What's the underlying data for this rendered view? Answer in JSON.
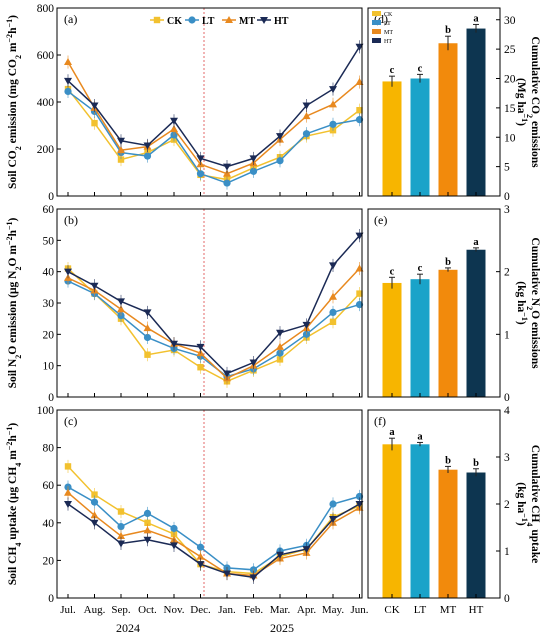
{
  "colors": {
    "CK": "#f2c12e",
    "LT": "#3a8fc6",
    "MT": "#e8891f",
    "HT": "#1b2a55"
  },
  "bar_colors": {
    "CK": "#f7b500",
    "LT": "#1aa3c9",
    "MT": "#f28a0c",
    "HT": "#0d3550"
  },
  "legend": [
    "CK",
    "LT",
    "MT",
    "HT"
  ],
  "months": [
    "Jul.",
    "Aug.",
    "Sep.",
    "Oct.",
    "Nov.",
    "Dec.",
    "Jan.",
    "Feb.",
    "Mar.",
    "Apr.",
    "May.",
    "Jun."
  ],
  "years": [
    "2024",
    "2025"
  ],
  "chart_data": [
    {
      "type": "line",
      "panel": "(a)",
      "ylabel": "Soil CO2 emission (mg CO2 m−2h−1)",
      "ylim": [
        0,
        800
      ],
      "yticks": [
        0,
        200,
        400,
        600,
        800
      ],
      "series": [
        {
          "name": "CK",
          "x": [
            0,
            1,
            2,
            3,
            4,
            5,
            6,
            7,
            8,
            9,
            10,
            11
          ],
          "values": [
            455,
            310,
            155,
            185,
            240,
            90,
            70,
            120,
            165,
            255,
            280,
            365
          ]
        },
        {
          "name": "LT",
          "x": [
            0,
            1,
            2,
            3,
            4,
            5,
            6,
            7,
            8,
            9,
            10,
            11
          ],
          "values": [
            445,
            360,
            185,
            170,
            260,
            95,
            55,
            105,
            150,
            265,
            305,
            325
          ]
        },
        {
          "name": "MT",
          "x": [
            0,
            1,
            2,
            3,
            4,
            5,
            6,
            7,
            8,
            9,
            10,
            11
          ],
          "values": [
            570,
            375,
            195,
            210,
            285,
            135,
            95,
            140,
            240,
            340,
            390,
            485
          ]
        },
        {
          "name": "HT",
          "x": [
            0,
            1,
            2,
            3,
            4,
            5,
            6,
            7,
            8,
            9,
            10,
            11
          ],
          "values": [
            490,
            385,
            235,
            215,
            320,
            160,
            125,
            160,
            255,
            385,
            455,
            635
          ]
        }
      ]
    },
    {
      "type": "line",
      "panel": "(b)",
      "ylabel": "Soil N2O emission (μg N2O m−2h−1)",
      "ylim": [
        0,
        60
      ],
      "yticks": [
        0,
        10,
        20,
        30,
        40,
        50,
        60
      ],
      "series": [
        {
          "name": "CK",
          "x": [
            0,
            1,
            2,
            3,
            4,
            5,
            6,
            7,
            8,
            9,
            10,
            11
          ],
          "values": [
            41,
            33,
            25,
            13.5,
            15,
            9.5,
            5,
            8.5,
            12,
            19,
            24,
            33
          ]
        },
        {
          "name": "LT",
          "x": [
            0,
            1,
            2,
            3,
            4,
            5,
            6,
            7,
            8,
            9,
            10,
            11
          ],
          "values": [
            37,
            33,
            26,
            19,
            15.5,
            13,
            6.5,
            9,
            14,
            20,
            27,
            29.5
          ]
        },
        {
          "name": "MT",
          "x": [
            0,
            1,
            2,
            3,
            4,
            5,
            6,
            7,
            8,
            9,
            10,
            11
          ],
          "values": [
            38,
            34,
            28,
            22,
            17,
            14,
            6,
            10,
            16,
            22,
            32,
            41
          ]
        },
        {
          "name": "HT",
          "x": [
            0,
            1,
            2,
            3,
            4,
            5,
            6,
            7,
            8,
            9,
            10,
            11
          ],
          "values": [
            40,
            35.5,
            30.5,
            27,
            17,
            16,
            7.5,
            11,
            20.5,
            23,
            42,
            51.5
          ]
        }
      ]
    },
    {
      "type": "line",
      "panel": "(c)",
      "ylabel": "Soil CH4 uptake (μg CH4 m−2h−1)",
      "ylim": [
        0,
        100
      ],
      "yticks": [
        0,
        20,
        40,
        60,
        80,
        100
      ],
      "series": [
        {
          "name": "CK",
          "x": [
            0,
            1,
            2,
            3,
            4,
            5,
            6,
            7,
            8,
            9,
            10,
            11
          ],
          "values": [
            70,
            55,
            46,
            40,
            34,
            18,
            14,
            13,
            22,
            26,
            43,
            49
          ]
        },
        {
          "name": "LT",
          "x": [
            0,
            1,
            2,
            3,
            4,
            5,
            6,
            7,
            8,
            9,
            10,
            11
          ],
          "values": [
            59,
            51,
            38,
            45,
            37,
            27,
            16,
            15,
            25,
            28,
            50,
            54
          ]
        },
        {
          "name": "MT",
          "x": [
            0,
            1,
            2,
            3,
            4,
            5,
            6,
            7,
            8,
            9,
            10,
            11
          ],
          "values": [
            56,
            44,
            33,
            36,
            31,
            22,
            13,
            12,
            21,
            24,
            40,
            48
          ]
        },
        {
          "name": "HT",
          "x": [
            0,
            1,
            2,
            3,
            4,
            5,
            6,
            7,
            8,
            9,
            10,
            11
          ],
          "values": [
            50,
            40,
            29,
            31,
            28,
            18,
            13,
            11,
            23,
            26,
            42,
            50
          ]
        }
      ]
    },
    {
      "type": "bar",
      "panel": "(d)",
      "ylabel": "Cumulative CO2 emissions (Mg ha−1)",
      "categories": [
        "CK",
        "LT",
        "MT",
        "HT"
      ],
      "values": [
        19.5,
        20,
        26,
        28.5
      ],
      "errors": [
        0.9,
        0.7,
        1.2,
        0.7
      ],
      "letters": [
        "c",
        "c",
        "b",
        "a"
      ],
      "ylim": [
        0,
        32
      ],
      "yticks": [
        0,
        5,
        10,
        15,
        20,
        25,
        30
      ]
    },
    {
      "type": "bar",
      "panel": "(e)",
      "ylabel": "Cumulative N2O emissions (kg ha−1)",
      "categories": [
        "CK",
        "LT",
        "MT",
        "HT"
      ],
      "values": [
        1.82,
        1.88,
        2.03,
        2.35
      ],
      "errors": [
        0.09,
        0.08,
        0.03,
        0.03
      ],
      "letters": [
        "c",
        "c",
        "b",
        "a"
      ],
      "ylim": [
        0,
        3
      ],
      "yticks": [
        0,
        1,
        2,
        3
      ]
    },
    {
      "type": "bar",
      "panel": "(f)",
      "ylabel": "Cumulative CH4 uptake (kg ha−1)",
      "categories": [
        "CK",
        "LT",
        "MT",
        "HT"
      ],
      "values": [
        3.27,
        3.27,
        2.73,
        2.67
      ],
      "errors": [
        0.13,
        0.04,
        0.07,
        0.08
      ],
      "letters": [
        "a",
        "a",
        "b",
        "b"
      ],
      "ylim": [
        0,
        4
      ],
      "yticks": [
        0,
        1,
        2,
        3,
        4
      ]
    }
  ]
}
